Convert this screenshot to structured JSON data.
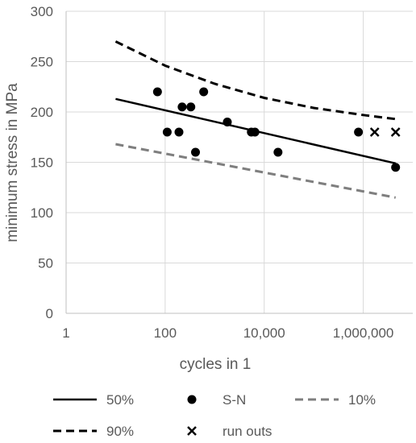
{
  "chart_data": {
    "type": "scatter",
    "title": "",
    "xlabel": "cycles in 1",
    "ylabel": "minimum stress in MPa",
    "x_scale": "log",
    "xlim": [
      1,
      10000000
    ],
    "ylim": [
      0,
      300
    ],
    "x_ticks": [
      {
        "value": 1,
        "label": "1"
      },
      {
        "value": 100,
        "label": "100"
      },
      {
        "value": 10000,
        "label": "10,000"
      },
      {
        "value": 1000000,
        "label": "1,000,000"
      }
    ],
    "y_ticks": [
      {
        "value": 0,
        "label": "0"
      },
      {
        "value": 50,
        "label": "50"
      },
      {
        "value": 100,
        "label": "100"
      },
      {
        "value": 150,
        "label": "150"
      },
      {
        "value": 200,
        "label": "200"
      },
      {
        "value": 250,
        "label": "250"
      },
      {
        "value": 300,
        "label": "300"
      }
    ],
    "grid": true,
    "legend_position": "bottom",
    "series": [
      {
        "name": "50%",
        "kind": "line",
        "style": "solid",
        "color": "#000000",
        "points": [
          [
            10,
            213
          ],
          [
            4500000,
            149
          ]
        ]
      },
      {
        "name": "S-N",
        "kind": "markers",
        "marker": "dot",
        "color": "#000000",
        "points": [
          [
            70,
            220
          ],
          [
            110,
            180
          ],
          [
            190,
            180
          ],
          [
            220,
            205
          ],
          [
            330,
            205
          ],
          [
            410,
            160
          ],
          [
            600,
            220
          ],
          [
            1800,
            190
          ],
          [
            5500,
            180
          ],
          [
            6500,
            180
          ],
          [
            19000,
            160
          ],
          [
            800000,
            180
          ],
          [
            4500000,
            145
          ]
        ]
      },
      {
        "name": "10%",
        "kind": "line",
        "style": "dashed",
        "color": "#7f7f7f",
        "points": [
          [
            10,
            168
          ],
          [
            4500000,
            115
          ]
        ]
      },
      {
        "name": "90%",
        "kind": "line",
        "style": "dashed",
        "color": "#000000",
        "points": [
          [
            10,
            270
          ],
          [
            100,
            246
          ],
          [
            1000,
            228
          ],
          [
            10000,
            214
          ],
          [
            100000,
            204
          ],
          [
            1000000,
            197
          ],
          [
            4500000,
            193
          ]
        ]
      },
      {
        "name": "run outs",
        "kind": "markers",
        "marker": "x",
        "color": "#000000",
        "points": [
          [
            1700000,
            180
          ],
          [
            4500000,
            180
          ]
        ]
      }
    ]
  }
}
